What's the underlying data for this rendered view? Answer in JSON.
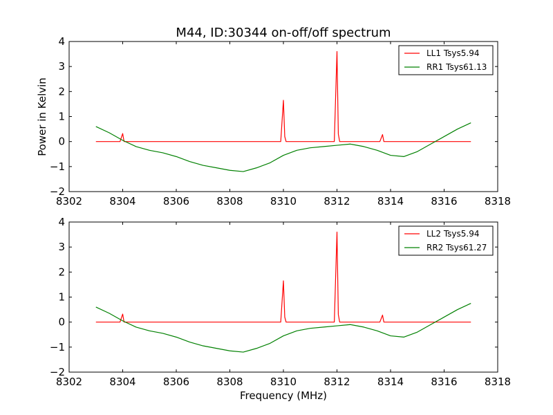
{
  "figure": {
    "title": "M44, ID:30344 on-off/off spectrum",
    "xlabel": "Frequency (MHz)",
    "ylabel": "Power in Kelvin"
  },
  "chart_data": [
    {
      "type": "line",
      "xlim": [
        8302,
        8318
      ],
      "ylim": [
        -2,
        4
      ],
      "xticks": [
        8302,
        8304,
        8306,
        8308,
        8310,
        8312,
        8314,
        8316,
        8318
      ],
      "yticks": [
        -2,
        -1,
        0,
        1,
        2,
        3,
        4
      ],
      "grid": false,
      "legend": "top-right",
      "series": [
        {
          "name": "LL1 Tsys5.94",
          "color": "#ff0000",
          "x": [
            8303,
            8303.9,
            8304,
            8304.05,
            8306,
            8308,
            8309.9,
            8310,
            8310.05,
            8310.1,
            8311.9,
            8312,
            8312.05,
            8312.1,
            8313.6,
            8313.7,
            8313.75,
            8315,
            8317
          ],
          "y": [
            0.0,
            0.0,
            0.32,
            0.0,
            0.0,
            0.0,
            0.0,
            1.65,
            0.2,
            0.0,
            0.0,
            3.6,
            0.3,
            0.0,
            0.0,
            0.28,
            0.0,
            0.0,
            0.0
          ]
        },
        {
          "name": "RR1 Tsys61.13",
          "color": "#008000",
          "x": [
            8303,
            8303.5,
            8304,
            8304.5,
            8305,
            8305.5,
            8306,
            8306.5,
            8307,
            8307.5,
            8308,
            8308.5,
            8309,
            8309.5,
            8310,
            8310.5,
            8311,
            8311.5,
            8312,
            8312.5,
            8313,
            8313.5,
            8314,
            8314.5,
            8315,
            8315.5,
            8316,
            8316.5,
            8317
          ],
          "y": [
            0.6,
            0.35,
            0.05,
            -0.2,
            -0.35,
            -0.45,
            -0.6,
            -0.8,
            -0.95,
            -1.05,
            -1.15,
            -1.2,
            -1.05,
            -0.85,
            -0.55,
            -0.35,
            -0.25,
            -0.2,
            -0.15,
            -0.1,
            -0.2,
            -0.35,
            -0.55,
            -0.6,
            -0.4,
            -0.1,
            0.2,
            0.5,
            0.75
          ]
        }
      ]
    },
    {
      "type": "line",
      "xlim": [
        8302,
        8318
      ],
      "ylim": [
        -2,
        4
      ],
      "xticks": [
        8302,
        8304,
        8306,
        8308,
        8310,
        8312,
        8314,
        8316,
        8318
      ],
      "yticks": [
        -2,
        -1,
        0,
        1,
        2,
        3,
        4
      ],
      "grid": false,
      "legend": "top-right",
      "series": [
        {
          "name": "LL2 Tsys5.94",
          "color": "#ff0000",
          "x": [
            8303,
            8303.9,
            8304,
            8304.05,
            8306,
            8308,
            8309.9,
            8310,
            8310.05,
            8310.1,
            8311.9,
            8312,
            8312.05,
            8312.1,
            8313.6,
            8313.7,
            8313.75,
            8315,
            8317
          ],
          "y": [
            0.0,
            0.0,
            0.32,
            0.0,
            0.0,
            0.0,
            0.0,
            1.65,
            0.2,
            0.0,
            0.0,
            3.6,
            0.3,
            0.0,
            0.0,
            0.28,
            0.0,
            0.0,
            0.0
          ]
        },
        {
          "name": "RR2 Tsys61.27",
          "color": "#008000",
          "x": [
            8303,
            8303.5,
            8304,
            8304.5,
            8305,
            8305.5,
            8306,
            8306.5,
            8307,
            8307.5,
            8308,
            8308.5,
            8309,
            8309.5,
            8310,
            8310.5,
            8311,
            8311.5,
            8312,
            8312.5,
            8313,
            8313.5,
            8314,
            8314.5,
            8315,
            8315.5,
            8316,
            8316.5,
            8317
          ],
          "y": [
            0.6,
            0.35,
            0.05,
            -0.2,
            -0.35,
            -0.45,
            -0.6,
            -0.8,
            -0.95,
            -1.05,
            -1.15,
            -1.2,
            -1.05,
            -0.85,
            -0.55,
            -0.35,
            -0.25,
            -0.2,
            -0.15,
            -0.1,
            -0.2,
            -0.35,
            -0.55,
            -0.6,
            -0.4,
            -0.1,
            0.2,
            0.5,
            0.75
          ]
        }
      ]
    }
  ]
}
